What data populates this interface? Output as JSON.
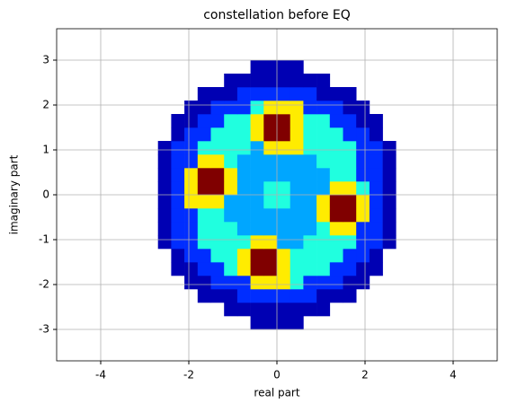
{
  "chart_data": {
    "type": "hist2d",
    "title": "constellation before EQ",
    "x_label": "real part",
    "y_label": "imaginary part",
    "colormap": "jet",
    "grid": true,
    "xlim": [
      -5,
      5
    ],
    "ylim": [
      -3.7,
      3.7
    ],
    "xticks": [
      -4,
      -2,
      0,
      2,
      4
    ],
    "yticks": [
      -3,
      -2,
      -1,
      0,
      1,
      2,
      3
    ],
    "xbins": [
      -3,
      -2.7,
      -2.4,
      -2.1,
      -1.8,
      -1.5,
      -1.2,
      -0.9,
      -0.6,
      -0.3,
      0,
      0.3,
      0.6,
      0.9,
      1.2,
      1.5,
      1.8,
      2.1,
      2.4,
      2.7,
      3
    ],
    "ybins": [
      -3,
      -2.7,
      -2.4,
      -2.1,
      -1.8,
      -1.5,
      -1.2,
      -0.9,
      -0.6,
      -0.3,
      0,
      0.3,
      0.6,
      0.9,
      1.2,
      1.5,
      1.8,
      2.1,
      2.4,
      2.7,
      3
    ],
    "counts": [
      [
        0,
        0,
        0,
        0,
        0,
        0,
        0,
        0,
        1,
        1,
        1,
        1,
        0,
        0,
        0,
        0,
        0,
        0,
        0,
        0
      ],
      [
        0,
        0,
        0,
        0,
        0,
        0,
        1,
        1,
        1,
        1,
        1,
        1,
        1,
        1,
        0,
        0,
        0,
        0,
        0,
        0
      ],
      [
        0,
        0,
        0,
        0,
        1,
        1,
        1,
        2,
        2,
        2,
        2,
        2,
        2,
        1,
        1,
        1,
        0,
        0,
        0,
        0
      ],
      [
        0,
        0,
        0,
        1,
        1,
        2,
        2,
        2,
        6,
        6,
        6,
        4,
        2,
        2,
        2,
        1,
        1,
        0,
        0,
        0
      ],
      [
        0,
        0,
        1,
        1,
        2,
        2,
        4,
        6,
        9,
        9,
        6,
        4,
        4,
        4,
        2,
        2,
        1,
        1,
        0,
        0
      ],
      [
        0,
        0,
        1,
        2,
        2,
        4,
        4,
        6,
        9,
        9,
        6,
        4,
        4,
        4,
        4,
        2,
        2,
        1,
        0,
        0
      ],
      [
        0,
        1,
        2,
        2,
        4,
        4,
        4,
        4,
        6,
        6,
        3,
        3,
        4,
        4,
        4,
        4,
        2,
        2,
        1,
        0
      ],
      [
        0,
        1,
        2,
        2,
        4,
        4,
        4,
        3,
        3,
        3,
        3,
        3,
        3,
        4,
        6,
        6,
        2,
        2,
        1,
        0
      ],
      [
        0,
        1,
        2,
        2,
        4,
        4,
        3,
        3,
        3,
        3,
        3,
        3,
        3,
        6,
        9,
        9,
        6,
        2,
        1,
        0
      ],
      [
        0,
        1,
        2,
        6,
        6,
        6,
        3,
        3,
        3,
        4,
        4,
        3,
        3,
        6,
        9,
        9,
        6,
        2,
        1,
        0
      ],
      [
        0,
        1,
        2,
        6,
        9,
        9,
        6,
        3,
        3,
        4,
        4,
        3,
        3,
        3,
        6,
        6,
        4,
        2,
        1,
        0
      ],
      [
        0,
        1,
        2,
        6,
        9,
        9,
        6,
        3,
        3,
        3,
        3,
        3,
        3,
        3,
        4,
        4,
        2,
        2,
        1,
        0
      ],
      [
        0,
        1,
        2,
        2,
        6,
        6,
        4,
        3,
        3,
        3,
        3,
        3,
        3,
        4,
        4,
        4,
        2,
        2,
        1,
        0
      ],
      [
        0,
        1,
        2,
        2,
        4,
        4,
        4,
        4,
        3,
        6,
        6,
        6,
        4,
        4,
        4,
        4,
        2,
        2,
        1,
        0
      ],
      [
        0,
        0,
        1,
        2,
        2,
        4,
        4,
        4,
        6,
        9,
        9,
        6,
        4,
        4,
        4,
        2,
        2,
        1,
        0,
        0
      ],
      [
        0,
        0,
        1,
        1,
        2,
        2,
        4,
        4,
        6,
        9,
        9,
        6,
        4,
        4,
        2,
        2,
        1,
        1,
        0,
        0
      ],
      [
        0,
        0,
        0,
        1,
        1,
        2,
        2,
        2,
        4,
        6,
        6,
        6,
        2,
        2,
        2,
        1,
        1,
        0,
        0,
        0
      ],
      [
        0,
        0,
        0,
        0,
        1,
        1,
        1,
        2,
        2,
        2,
        2,
        2,
        2,
        1,
        1,
        1,
        0,
        0,
        0,
        0
      ],
      [
        0,
        0,
        0,
        0,
        0,
        0,
        1,
        1,
        1,
        1,
        1,
        1,
        1,
        1,
        0,
        0,
        0,
        0,
        0,
        0
      ],
      [
        0,
        0,
        0,
        0,
        0,
        0,
        0,
        0,
        1,
        1,
        1,
        1,
        0,
        0,
        0,
        0,
        0,
        0,
        0,
        0
      ]
    ]
  }
}
